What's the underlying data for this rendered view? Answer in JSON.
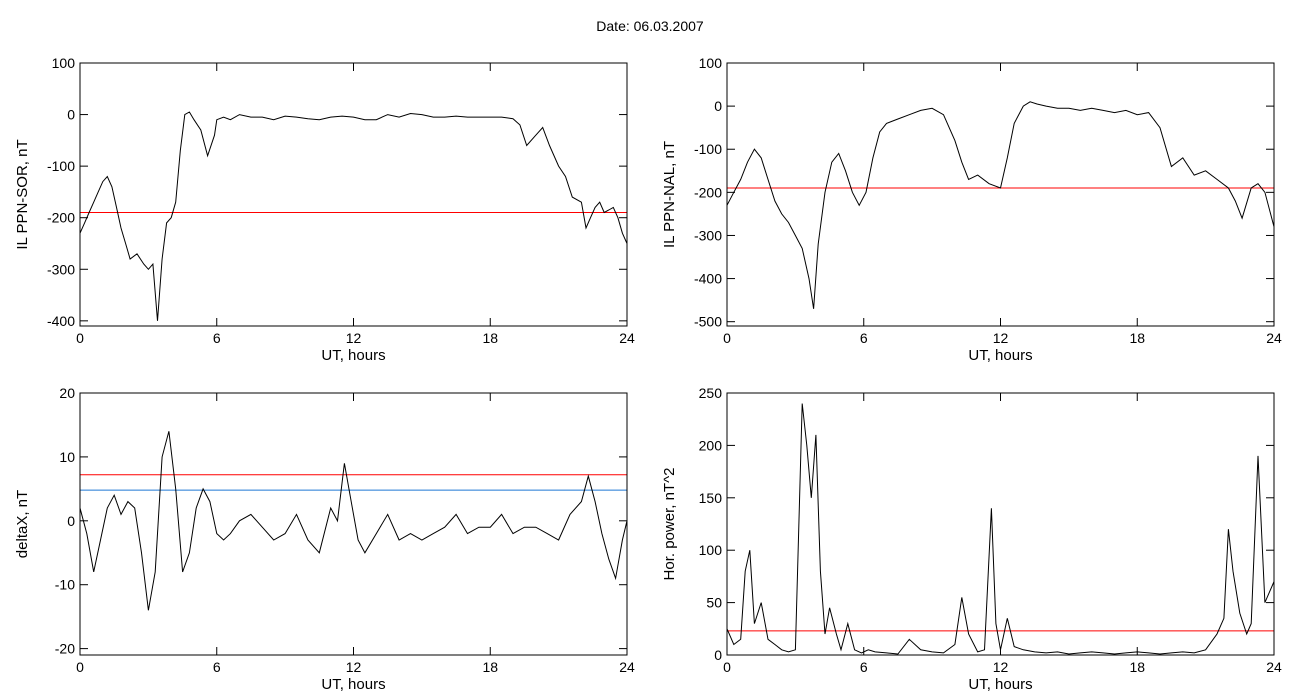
{
  "title": "Date:  06.03.2007",
  "colors": {
    "black": "#000000",
    "red": "#ff0000",
    "blue": "#1f77d4",
    "green": "#22bb22"
  },
  "chart_data": [
    {
      "id": "sor",
      "type": "line",
      "ylabel": "IL PPN-SOR, nT",
      "xlabel": "UT, hours",
      "xlim": [
        0,
        24
      ],
      "ylim": [
        -410,
        100
      ],
      "xticks": [
        0,
        6,
        12,
        18,
        24
      ],
      "yticks": [
        -400,
        -300,
        -200,
        -100,
        0,
        100
      ],
      "hlines": [
        {
          "y": -190,
          "color": "#ff0000"
        }
      ],
      "series": [
        {
          "color": "#000000",
          "x": [
            0,
            0.2,
            0.4,
            0.6,
            0.8,
            1.0,
            1.2,
            1.4,
            1.6,
            1.8,
            2.0,
            2.2,
            2.5,
            2.8,
            3.0,
            3.2,
            3.4,
            3.6,
            3.8,
            4.0,
            4.2,
            4.4,
            4.6,
            4.8,
            5.0,
            5.3,
            5.6,
            5.9,
            6.0,
            6.3,
            6.6,
            7.0,
            7.5,
            8,
            8.5,
            9,
            9.5,
            10,
            10.5,
            11,
            11.5,
            12,
            12.5,
            13,
            13.5,
            14,
            14.5,
            15,
            15.5,
            16,
            16.5,
            17,
            17.5,
            18,
            18.5,
            19,
            19.3,
            19.6,
            20,
            20.3,
            20.6,
            21,
            21.3,
            21.6,
            22,
            22.2,
            22.4,
            22.6,
            22.8,
            23,
            23.2,
            23.4,
            23.6,
            23.8,
            24
          ],
          "y": [
            -230,
            -210,
            -190,
            -170,
            -150,
            -130,
            -120,
            -140,
            -180,
            -220,
            -250,
            -280,
            -270,
            -290,
            -300,
            -290,
            -400,
            -280,
            -210,
            -200,
            -170,
            -70,
            0,
            5,
            -10,
            -30,
            -80,
            -40,
            -10,
            -5,
            -10,
            0,
            -5,
            -5,
            -10,
            -3,
            -5,
            -8,
            -10,
            -5,
            -3,
            -5,
            -10,
            -10,
            0,
            -5,
            2,
            0,
            -5,
            -5,
            -3,
            -5,
            -5,
            -5,
            -5,
            -8,
            -20,
            -60,
            -40,
            -25,
            -60,
            -100,
            -120,
            -160,
            -170,
            -220,
            -200,
            -180,
            -170,
            -190,
            -185,
            -180,
            -200,
            -230,
            -250
          ]
        }
      ]
    },
    {
      "id": "nal",
      "type": "line",
      "ylabel": "IL PPN-NAL, nT",
      "xlabel": "UT, hours",
      "xlim": [
        0,
        24
      ],
      "ylim": [
        -510,
        100
      ],
      "xticks": [
        0,
        6,
        12,
        18,
        24
      ],
      "yticks": [
        -500,
        -400,
        -300,
        -200,
        -100,
        0,
        100
      ],
      "hlines": [
        {
          "y": -190,
          "color": "#ff0000"
        }
      ],
      "series": [
        {
          "color": "#000000",
          "x": [
            0,
            0.3,
            0.6,
            0.9,
            1.2,
            1.5,
            1.8,
            2.1,
            2.4,
            2.7,
            3.0,
            3.3,
            3.6,
            3.8,
            4.0,
            4.3,
            4.6,
            4.9,
            5.2,
            5.5,
            5.8,
            6.1,
            6.4,
            6.7,
            7.0,
            7.5,
            8,
            8.5,
            9,
            9.5,
            10,
            10.3,
            10.6,
            11,
            11.5,
            12,
            12.3,
            12.6,
            13,
            13.3,
            13.6,
            14,
            14.5,
            15,
            15.5,
            16,
            16.5,
            17,
            17.5,
            18,
            18.5,
            19,
            19.5,
            20,
            20.5,
            21,
            21.5,
            22,
            22.3,
            22.6,
            23,
            23.3,
            23.6,
            24
          ],
          "y": [
            -230,
            -200,
            -170,
            -130,
            -100,
            -120,
            -170,
            -220,
            -250,
            -270,
            -300,
            -330,
            -400,
            -470,
            -320,
            -200,
            -130,
            -110,
            -150,
            -200,
            -230,
            -200,
            -120,
            -60,
            -40,
            -30,
            -20,
            -10,
            -5,
            -20,
            -80,
            -130,
            -170,
            -160,
            -180,
            -190,
            -120,
            -40,
            0,
            10,
            5,
            0,
            -5,
            -5,
            -10,
            -5,
            -10,
            -15,
            -10,
            -20,
            -15,
            -50,
            -140,
            -120,
            -160,
            -150,
            -170,
            -190,
            -220,
            -260,
            -190,
            -180,
            -200,
            -280
          ]
        }
      ]
    },
    {
      "id": "deltax",
      "type": "line",
      "ylabel": "deltaX, nT",
      "xlabel": "UT, hours",
      "xlim": [
        0,
        24
      ],
      "ylim": [
        -21,
        20
      ],
      "xticks": [
        0,
        6,
        12,
        18,
        24
      ],
      "yticks": [
        -20,
        -10,
        0,
        10,
        20
      ],
      "hlines": [
        {
          "y": 7.2,
          "color": "#ff0000"
        },
        {
          "y": 4.8,
          "color": "#1f77d4"
        }
      ],
      "series": [
        {
          "color": "#000000",
          "x": [
            0,
            0.3,
            0.6,
            0.9,
            1.2,
            1.5,
            1.8,
            2.1,
            2.4,
            2.7,
            3.0,
            3.3,
            3.6,
            3.9,
            4.2,
            4.5,
            4.8,
            5.1,
            5.4,
            5.7,
            6.0,
            6.3,
            6.6,
            7,
            7.5,
            8,
            8.5,
            9,
            9.5,
            10,
            10.5,
            11,
            11.3,
            11.6,
            11.9,
            12.2,
            12.5,
            13,
            13.5,
            14,
            14.5,
            15,
            15.5,
            16,
            16.5,
            17,
            17.5,
            18,
            18.5,
            19,
            19.5,
            20,
            20.5,
            21,
            21.5,
            22,
            22.3,
            22.6,
            22.9,
            23.2,
            23.5,
            23.8,
            24
          ],
          "y": [
            2,
            -2,
            -8,
            -3,
            2,
            4,
            1,
            3,
            2,
            -5,
            -14,
            -8,
            10,
            14,
            5,
            -8,
            -5,
            2,
            5,
            3,
            -2,
            -3,
            -2,
            0,
            1,
            -1,
            -3,
            -2,
            1,
            -3,
            -5,
            2,
            0,
            9,
            3,
            -3,
            -5,
            -2,
            1,
            -3,
            -2,
            -3,
            -2,
            -1,
            1,
            -2,
            -1,
            -1,
            1,
            -2,
            -1,
            -1,
            -2,
            -3,
            1,
            3,
            7,
            3,
            -2,
            -6,
            -9,
            -3,
            0
          ]
        }
      ]
    },
    {
      "id": "power",
      "type": "line",
      "ylabel": "Hor. power, nT^2",
      "xlabel": "UT, hours",
      "xlim": [
        0,
        24
      ],
      "ylim": [
        0,
        250
      ],
      "xticks": [
        0,
        6,
        12,
        18,
        24
      ],
      "yticks": [
        0,
        50,
        100,
        150,
        200,
        250
      ],
      "hlines": [
        {
          "y": 23,
          "color": "#ff0000"
        }
      ],
      "series": [
        {
          "color": "#000000",
          "x": [
            0,
            0.3,
            0.6,
            0.8,
            1.0,
            1.2,
            1.5,
            1.8,
            2.1,
            2.4,
            2.7,
            3.0,
            3.3,
            3.5,
            3.7,
            3.9,
            4.1,
            4.3,
            4.5,
            4.8,
            5.0,
            5.3,
            5.6,
            5.9,
            6.2,
            6.5,
            7,
            7.5,
            8,
            8.5,
            9,
            9.5,
            10,
            10.3,
            10.6,
            11,
            11.3,
            11.6,
            11.8,
            12,
            12.3,
            12.6,
            13,
            13.5,
            14,
            14.5,
            15,
            15.5,
            16,
            16.5,
            17,
            17.5,
            18,
            18.5,
            19,
            19.5,
            20,
            20.5,
            21,
            21.5,
            21.8,
            22,
            22.2,
            22.5,
            22.8,
            23,
            23.3,
            23.6,
            24
          ],
          "y": [
            25,
            10,
            15,
            80,
            100,
            30,
            50,
            15,
            10,
            5,
            3,
            5,
            240,
            200,
            150,
            210,
            80,
            20,
            45,
            20,
            5,
            30,
            5,
            2,
            5,
            3,
            2,
            1,
            15,
            5,
            3,
            2,
            10,
            55,
            20,
            3,
            5,
            140,
            30,
            5,
            35,
            8,
            5,
            3,
            2,
            3,
            1,
            2,
            3,
            2,
            1,
            2,
            3,
            2,
            1,
            2,
            3,
            2,
            5,
            20,
            35,
            120,
            80,
            40,
            20,
            30,
            190,
            50,
            70
          ]
        }
      ]
    }
  ]
}
